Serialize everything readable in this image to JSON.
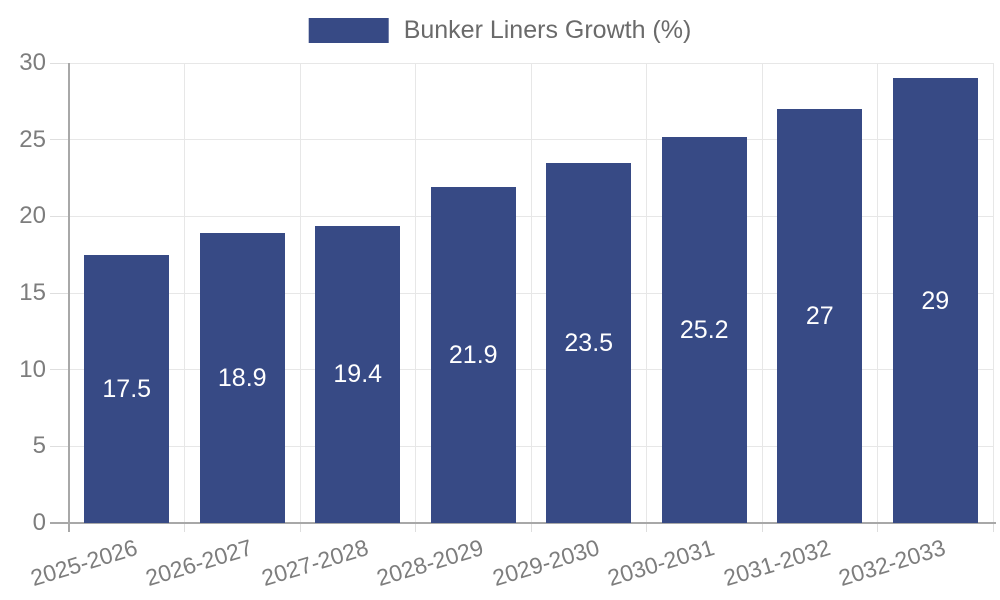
{
  "legend": {
    "label": "Bunker Liners Growth (%)"
  },
  "chart_data": {
    "type": "bar",
    "title": "",
    "categories": [
      "2025-2026",
      "2026-2027",
      "2027-2028",
      "2028-2029",
      "2029-2030",
      "2030-2031",
      "2031-2032",
      "2032-2033"
    ],
    "series": [
      {
        "name": "Bunker Liners Growth (%)",
        "values": [
          17.5,
          18.9,
          19.4,
          21.9,
          23.5,
          25.2,
          27,
          29
        ]
      }
    ],
    "value_labels": [
      17.5,
      18.9,
      19.4,
      21.9,
      23.5,
      25.2,
      27,
      29
    ],
    "xlabel": "",
    "ylabel": "",
    "ylim": [
      0,
      30
    ],
    "yticks": [
      0,
      5,
      10,
      15,
      20,
      25,
      30
    ],
    "grid": true,
    "legend_position": "top-center",
    "colors": {
      "bar": "#374a85",
      "grid": "#e7e7e7",
      "axis": "#a8a8a8",
      "tick": "#dedede",
      "tick_label": "#7d7d7d",
      "legend_label": "#6a6a6a",
      "value_label": "#ffffff",
      "background": "#ffffff"
    }
  }
}
